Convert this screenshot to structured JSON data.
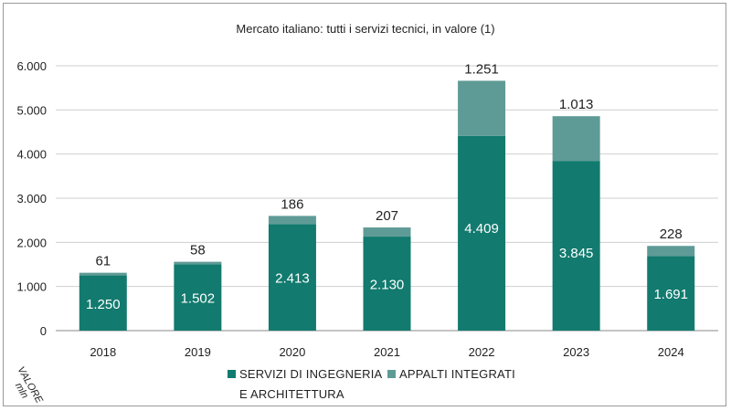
{
  "chart_data": {
    "type": "bar",
    "stacked": true,
    "title": "Mercato italiano: tutti i servizi tecnici, in valore (1)",
    "ylabel": "VALORE",
    "yunit": "mln",
    "ylim": [
      0,
      6000
    ],
    "yticks": [
      "0",
      "1.000",
      "2.000",
      "3.000",
      "4.000",
      "5.000",
      "6.000"
    ],
    "grid": true,
    "legend_position": "bottom",
    "categories": [
      "2018",
      "2019",
      "2020",
      "2021",
      "2022",
      "2023",
      "2024"
    ],
    "series": [
      {
        "name": "SERVIZI DI INGEGNERIA E ARCHITETTURA",
        "legend_lines": [
          "SERVIZI DI INGEGNERIA",
          "E ARCHITETTURA"
        ],
        "color": "#127a6e",
        "values": [
          1250,
          1502,
          2413,
          2130,
          4409,
          3845,
          1691
        ],
        "labels": [
          "1.250",
          "1.502",
          "2.413",
          "2.130",
          "4.409",
          "3.845",
          "1.691"
        ]
      },
      {
        "name": "APPALTI INTEGRATI",
        "legend_lines": [
          "APPALTI INTEGRATI"
        ],
        "color": "#5f9b96",
        "values": [
          61,
          58,
          186,
          207,
          1251,
          1013,
          228
        ],
        "labels": [
          "61",
          "58",
          "186",
          "207",
          "1.251",
          "1.013",
          "228"
        ]
      }
    ]
  }
}
